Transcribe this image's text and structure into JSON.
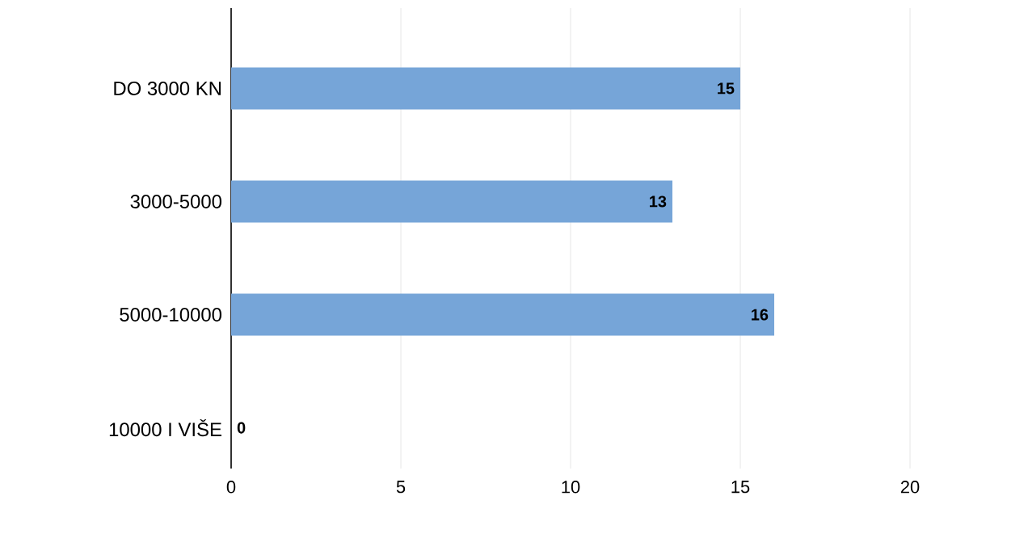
{
  "chart_data": {
    "type": "bar",
    "orientation": "horizontal",
    "categories": [
      "DO 3000 KN",
      "3000-5000",
      "5000-10000",
      "10000 I VIŠE"
    ],
    "values": [
      15,
      13,
      16,
      0
    ],
    "color": "#76a5d8",
    "xlim": [
      0,
      20
    ],
    "xticks": [
      0,
      5,
      10,
      15,
      20
    ],
    "grid": "x",
    "data_labels": true
  }
}
